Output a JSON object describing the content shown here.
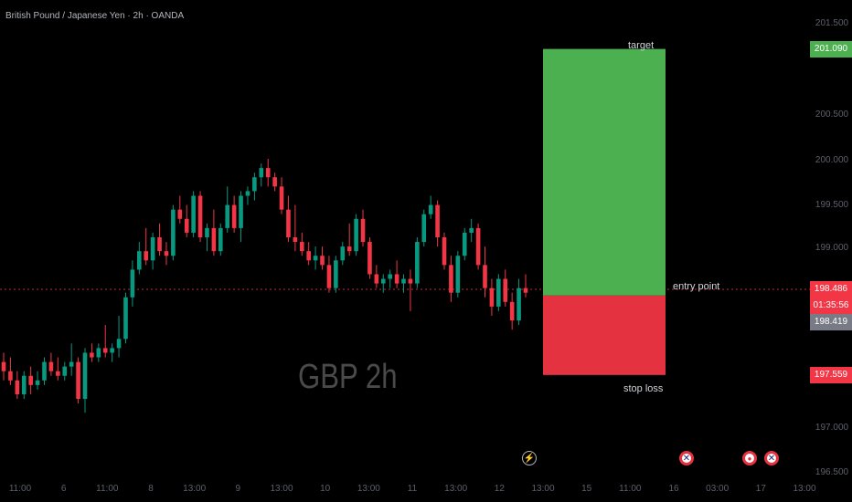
{
  "header": {
    "title": "British Pound / Japanese Yen · 2h · OANDA"
  },
  "watermark": "GBP 2h",
  "annotations": {
    "target": "target",
    "entry": "entry point",
    "stop": "stop loss"
  },
  "price_labels": {
    "target": "201.090",
    "last": "198.486",
    "countdown": "01:35:56",
    "entry": "198.419",
    "stop": "197.559"
  },
  "colors": {
    "up": "#089981",
    "down": "#f23645",
    "target_zone": "#4caf50",
    "stop_zone": "#e53240",
    "last_line": "#f23645"
  },
  "events": [
    {
      "icon": "lightning-icon",
      "glyph": "⚡"
    },
    {
      "icon": "uk-flag-icon",
      "glyph": "✕"
    },
    {
      "icon": "record-icon",
      "glyph": "●"
    },
    {
      "icon": "uk-flag-icon",
      "glyph": "✕"
    }
  ],
  "chart_data": {
    "type": "candlestick",
    "y_ticks": [
      "201.500",
      "200.500",
      "200.000",
      "199.500",
      "199.000",
      "197.000",
      "196.500"
    ],
    "x_ticks": [
      "11:00",
      "6",
      "11:00",
      "8",
      "13:00",
      "9",
      "13:00",
      "10",
      "13:00",
      "11",
      "13:00",
      "12",
      "13:00",
      "15",
      "11:00",
      "16",
      "03:00",
      "17",
      "13:00"
    ],
    "ylim": [
      196.48,
      201.62
    ],
    "grid": false,
    "position": {
      "target": 201.09,
      "entry": 198.419,
      "stop": 197.559
    },
    "last_price": 198.486,
    "candles": [
      [
        197.7,
        197.8,
        197.5,
        197.6
      ],
      [
        197.6,
        197.75,
        197.45,
        197.5
      ],
      [
        197.5,
        197.6,
        197.3,
        197.35
      ],
      [
        197.35,
        197.6,
        197.3,
        197.55
      ],
      [
        197.55,
        197.65,
        197.35,
        197.45
      ],
      [
        197.45,
        197.6,
        197.4,
        197.5
      ],
      [
        197.5,
        197.75,
        197.45,
        197.7
      ],
      [
        197.7,
        197.8,
        197.55,
        197.6
      ],
      [
        197.6,
        197.75,
        197.5,
        197.55
      ],
      [
        197.55,
        197.7,
        197.5,
        197.65
      ],
      [
        197.65,
        197.9,
        197.55,
        197.7
      ],
      [
        197.7,
        197.75,
        197.25,
        197.3
      ],
      [
        197.3,
        197.85,
        197.15,
        197.8
      ],
      [
        197.8,
        197.9,
        197.7,
        197.75
      ],
      [
        197.75,
        197.9,
        197.7,
        197.85
      ],
      [
        197.85,
        198.1,
        197.75,
        197.8
      ],
      [
        197.8,
        197.9,
        197.7,
        197.85
      ],
      [
        197.85,
        198.2,
        197.75,
        197.95
      ],
      [
        197.95,
        198.45,
        197.9,
        198.4
      ],
      [
        198.4,
        198.8,
        198.3,
        198.7
      ],
      [
        198.7,
        199.0,
        198.65,
        198.9
      ],
      [
        198.9,
        199.15,
        198.75,
        198.8
      ],
      [
        198.8,
        199.1,
        198.7,
        199.05
      ],
      [
        199.05,
        199.2,
        198.85,
        198.9
      ],
      [
        198.9,
        199.0,
        198.75,
        198.85
      ],
      [
        198.85,
        199.4,
        198.8,
        199.35
      ],
      [
        199.35,
        199.5,
        199.2,
        199.25
      ],
      [
        199.25,
        199.4,
        199.05,
        199.1
      ],
      [
        199.1,
        199.55,
        199.05,
        199.5
      ],
      [
        199.5,
        199.55,
        199.0,
        199.05
      ],
      [
        199.05,
        199.2,
        198.9,
        199.15
      ],
      [
        199.15,
        199.35,
        198.85,
        198.9
      ],
      [
        198.9,
        199.2,
        198.85,
        199.15
      ],
      [
        199.15,
        199.6,
        199.1,
        199.4
      ],
      [
        199.4,
        199.5,
        199.1,
        199.15
      ],
      [
        199.15,
        199.55,
        199.0,
        199.5
      ],
      [
        199.5,
        199.6,
        199.4,
        199.55
      ],
      [
        199.55,
        199.75,
        199.45,
        199.7
      ],
      [
        199.7,
        199.85,
        199.6,
        199.8
      ],
      [
        199.8,
        199.9,
        199.6,
        199.7
      ],
      [
        199.7,
        199.75,
        199.55,
        199.6
      ],
      [
        199.6,
        199.7,
        199.3,
        199.35
      ],
      [
        199.35,
        199.5,
        199.0,
        199.05
      ],
      [
        199.05,
        199.4,
        198.9,
        199.0
      ],
      [
        199.0,
        199.1,
        198.85,
        198.9
      ],
      [
        198.9,
        199.0,
        198.75,
        198.8
      ],
      [
        198.8,
        198.95,
        198.7,
        198.85
      ],
      [
        198.85,
        198.95,
        198.7,
        198.75
      ],
      [
        198.75,
        198.85,
        198.45,
        198.5
      ],
      [
        198.5,
        198.85,
        198.45,
        198.8
      ],
      [
        198.8,
        199.0,
        198.75,
        198.95
      ],
      [
        198.95,
        199.2,
        198.85,
        198.9
      ],
      [
        198.9,
        199.3,
        198.85,
        199.25
      ],
      [
        199.25,
        199.35,
        198.95,
        199.0
      ],
      [
        199.0,
        199.05,
        198.6,
        198.65
      ],
      [
        198.65,
        198.75,
        198.5,
        198.55
      ],
      [
        198.55,
        198.65,
        198.45,
        198.6
      ],
      [
        198.6,
        198.7,
        198.5,
        198.65
      ],
      [
        198.65,
        198.8,
        198.5,
        198.55
      ],
      [
        198.55,
        198.65,
        198.45,
        198.6
      ],
      [
        198.6,
        198.7,
        198.25,
        198.55
      ],
      [
        198.55,
        199.05,
        198.5,
        199.0
      ],
      [
        199.0,
        199.35,
        198.95,
        199.3
      ],
      [
        199.3,
        199.5,
        199.25,
        199.4
      ],
      [
        199.4,
        199.45,
        198.95,
        199.05
      ],
      [
        199.05,
        199.1,
        198.7,
        198.75
      ],
      [
        198.75,
        198.85,
        198.35,
        198.45
      ],
      [
        198.45,
        198.9,
        198.4,
        198.85
      ],
      [
        198.85,
        199.15,
        198.8,
        199.1
      ],
      [
        199.1,
        199.25,
        199.0,
        199.15
      ],
      [
        199.15,
        199.2,
        198.7,
        198.75
      ],
      [
        198.75,
        198.95,
        198.4,
        198.5
      ],
      [
        198.5,
        198.6,
        198.2,
        198.3
      ],
      [
        198.3,
        198.65,
        198.25,
        198.6
      ],
      [
        198.6,
        198.7,
        198.3,
        198.35
      ],
      [
        198.35,
        198.45,
        198.05,
        198.15
      ],
      [
        198.15,
        198.6,
        198.1,
        198.5
      ],
      [
        198.5,
        198.65,
        198.4,
        198.45
      ]
    ]
  }
}
